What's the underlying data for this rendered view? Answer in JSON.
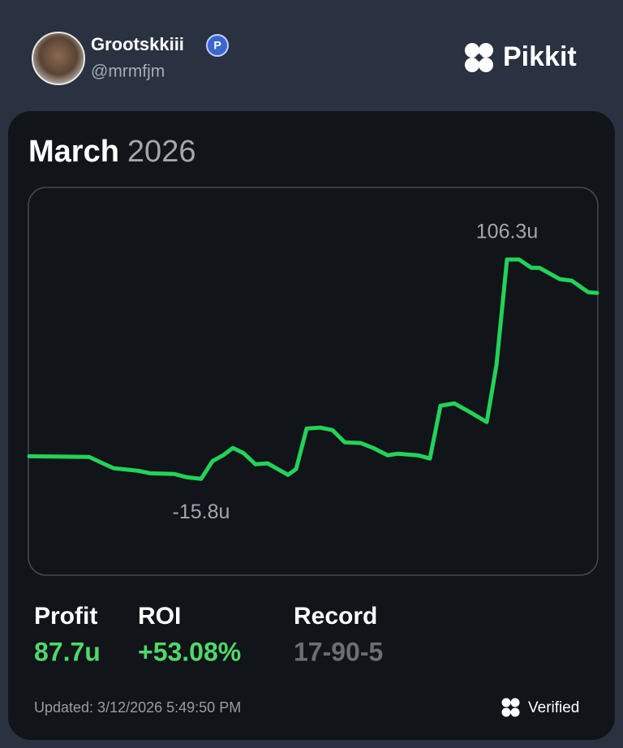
{
  "header": {
    "username": "Grootskkiii",
    "badge": "P",
    "handle": "@mrmfjm",
    "brand": "Pikkit"
  },
  "card": {
    "month": "March",
    "year": "2026",
    "stats": [
      {
        "label": "Profit",
        "value": "87.7u"
      },
      {
        "label": "ROI",
        "value": "+53.08%"
      },
      {
        "label": "Record",
        "value": "17-90-5"
      }
    ],
    "updated": "Updated: 3/12/2026 5:49:50 PM",
    "verified": "Verified"
  },
  "chart_data": {
    "type": "line",
    "x": [
      0,
      74,
      89,
      104,
      134,
      149,
      179,
      194,
      212,
      226,
      239,
      251,
      264,
      279,
      294,
      319,
      329,
      342,
      359,
      374,
      389,
      409,
      424,
      442,
      454,
      479,
      494,
      507,
      524,
      544,
      564,
      576,
      589,
      604,
      619,
      629,
      654,
      669,
      689,
      700
    ],
    "xlim": [
      0,
      700
    ],
    "series": [
      {
        "color": "#22d35a",
        "values": [
          -3.2,
          -3.6,
          -6.8,
          -9.9,
          -11.3,
          -12.7,
          -13.1,
          -14.9,
          -15.8,
          -5.9,
          -2.7,
          1.4,
          -1.4,
          -7.7,
          -7.2,
          -13.6,
          -10.4,
          12.2,
          12.7,
          11.3,
          4.5,
          4.1,
          1.4,
          -2.7,
          -1.8,
          -2.7,
          -4.5,
          24.9,
          26.2,
          21.2,
          15.8,
          47.5,
          106.3,
          106.3,
          101.7,
          101.7,
          95.4,
          94.5,
          88.1,
          87.7
        ]
      }
    ],
    "ylim": [
      -69,
      146
    ],
    "max_label": "106.3u",
    "min_label": "-15.8u"
  }
}
